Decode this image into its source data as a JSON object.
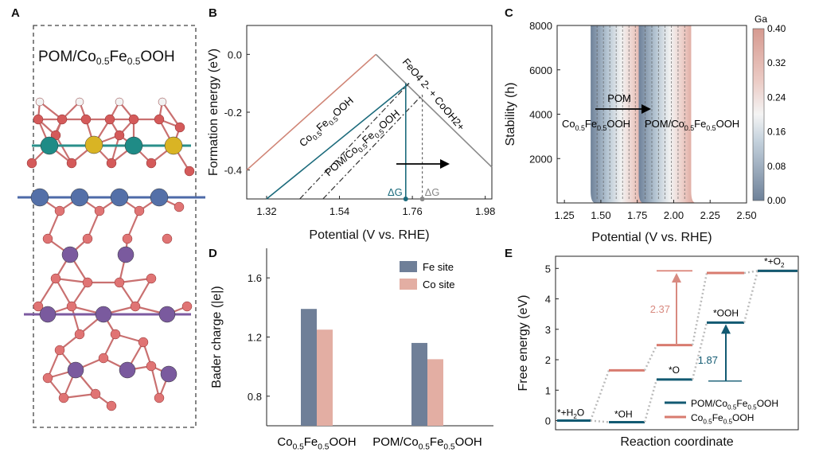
{
  "panels": {
    "A": {
      "letter": "A",
      "label_main": "POM/Co",
      "label_sub1": "0.5",
      "label_mid": "Fe",
      "label_sub2": "0.5",
      "label_end": "OOH"
    },
    "B": {
      "letter": "B",
      "ylabel": "Formation energy (eV)",
      "xlabel": "Potential (V vs. RHE)",
      "xticks": [
        "1.32",
        "1.54",
        "1.76",
        "1.98"
      ],
      "yticks": [
        "0.0",
        "-0.2",
        "-0.4"
      ],
      "line1_label": "Co0.5Fe0.5OOH",
      "line2_label": "POM/Co0.5Fe0.5OOH",
      "product_label": "FeO4 2- + CoOH2+",
      "dG_label": "ΔG",
      "dGa_label": "ΔGa"
    },
    "C": {
      "letter": "C",
      "ylabel": "Stability (h)",
      "xlabel": "Potential (V vs. RHE)",
      "xticks": [
        "1.25",
        "1.50",
        "1.75",
        "2.00",
        "2.25",
        "2.50"
      ],
      "yticks": [
        "2000",
        "4000",
        "6000",
        "8000"
      ],
      "arrow_label": "POM",
      "left_label": "Co0.5Fe0.5OOH",
      "right_label": "POM/Co0.5Fe0.5OOH",
      "colorbar_title": "Ga",
      "colorbar_ticks": [
        "0.40",
        "0.32",
        "0.24",
        "0.16",
        "0.08",
        "0.00"
      ]
    },
    "D": {
      "letter": "D",
      "ylabel": "Bader charge (|e|)",
      "legend": [
        "Fe site",
        "Co site"
      ],
      "colors": [
        "#6f7f98",
        "#e3aea3"
      ]
    },
    "E": {
      "letter": "E",
      "ylabel": "Free energy (eV)",
      "xlabel": "Reaction coordinate",
      "yticks": [
        "0",
        "1",
        "2",
        "3",
        "4",
        "5"
      ],
      "step_labels": [
        "*+H2O",
        "*OH",
        "*O",
        "*OOH",
        "*+O2"
      ],
      "barrier1": "2.37",
      "barrier2": "1.87",
      "legend": [
        "POM/Co0.5Fe0.5OOH",
        "Co0.5Fe0.5OOH"
      ],
      "colors": [
        "#125a72",
        "#d87b6f"
      ]
    }
  },
  "chart_data": [
    {
      "type": "line",
      "panel": "B",
      "title": "",
      "xlabel": "Potential (V vs. RHE)",
      "ylabel": "Formation energy (eV)",
      "xlim": [
        1.26,
        2.0
      ],
      "ylim": [
        -0.5,
        0.1
      ],
      "series": [
        {
          "name": "Co0.5Fe0.5OOH",
          "x": [
            1.26,
            1.65
          ],
          "y": [
            -0.4,
            0.0
          ]
        },
        {
          "name": "POM/Co0.5Fe0.5OOH",
          "x": [
            1.32,
            1.75
          ],
          "y": [
            -0.5,
            -0.1
          ]
        },
        {
          "name": "FeO4 2- + CoOH2+",
          "x": [
            1.65,
            2.0
          ],
          "y": [
            0.0,
            -0.39
          ]
        }
      ]
    },
    {
      "type": "heatmap",
      "panel": "C",
      "xlabel": "Potential (V vs. RHE)",
      "ylabel": "Stability (h)",
      "xlim": [
        1.2,
        2.5
      ],
      "ylim": [
        0,
        8000
      ],
      "colorbar_range": [
        0.0,
        0.4
      ]
    },
    {
      "type": "bar",
      "panel": "D",
      "ylabel": "Bader charge (|e|)",
      "categories": [
        "Co0.5Fe0.5OOH",
        "POM/Co0.5Fe0.5OOH"
      ],
      "yticks": [
        0.8,
        1.2,
        1.6
      ],
      "ylim": [
        0.6,
        1.8
      ],
      "series": [
        {
          "name": "Fe site",
          "values": [
            1.39,
            1.16
          ]
        },
        {
          "name": "Co site",
          "values": [
            1.25,
            1.05
          ]
        }
      ]
    },
    {
      "type": "line",
      "panel": "E",
      "xlabel": "Reaction coordinate",
      "ylabel": "Free energy (eV)",
      "ylim": [
        -0.3,
        5.4
      ],
      "series": [
        {
          "name": "POM/Co0.5Fe0.5OOH",
          "values": [
            0.0,
            -0.05,
            1.35,
            3.22,
            4.92
          ]
        },
        {
          "name": "Co0.5Fe0.5OOH",
          "values": [
            0.0,
            1.65,
            2.48,
            4.85,
            4.92
          ]
        }
      ]
    }
  ]
}
